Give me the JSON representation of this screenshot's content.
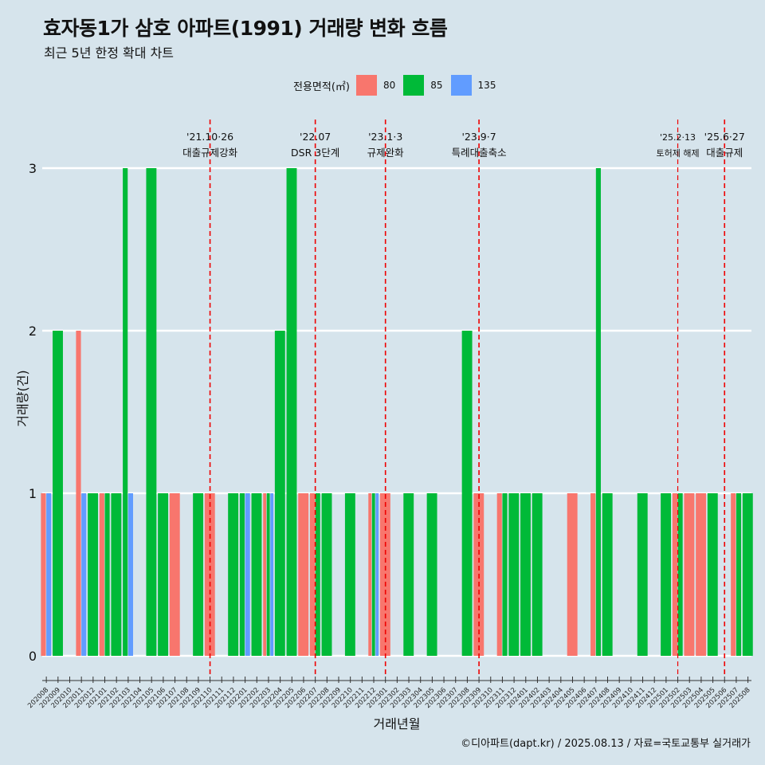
{
  "chart_data": {
    "type": "bar",
    "title": "효자동1가 삼호 아파트(1991) 거래량 변화 흐름",
    "subtitle": "최근 5년 한정 확대 차트",
    "xlabel": "거래년월",
    "ylabel": "거래량(건)",
    "ylim": [
      0,
      3
    ],
    "yticks": [
      "0",
      "1",
      "2",
      "3"
    ],
    "legend": {
      "title": "전용면적(㎡)",
      "position": "top"
    },
    "series": [
      {
        "name": "80",
        "color": "#f8766d"
      },
      {
        "name": "85",
        "color": "#00ba38"
      },
      {
        "name": "135",
        "color": "#619cff"
      }
    ],
    "categories": [
      "202008",
      "202009",
      "202010",
      "202011",
      "202012",
      "202101",
      "202102",
      "202103",
      "202104",
      "202105",
      "202106",
      "202107",
      "202108",
      "202109",
      "202110",
      "202111",
      "202112",
      "202201",
      "202202",
      "202203",
      "202204",
      "202205",
      "202206",
      "202207",
      "202208",
      "202209",
      "202210",
      "202211",
      "202212",
      "202301",
      "202302",
      "202303",
      "202304",
      "202305",
      "202306",
      "202307",
      "202308",
      "202309",
      "202310",
      "202311",
      "202312",
      "202401",
      "202402",
      "202403",
      "202404",
      "202405",
      "202406",
      "202407",
      "202408",
      "202409",
      "202410",
      "202411",
      "202412",
      "202501",
      "202502",
      "202503",
      "202504",
      "202505",
      "202506",
      "202507",
      "202508"
    ],
    "bars": [
      {
        "month": "202008",
        "area": "80",
        "value": 1
      },
      {
        "month": "202008",
        "area": "135",
        "value": 1
      },
      {
        "month": "202009",
        "area": "85",
        "value": 2
      },
      {
        "month": "202011",
        "area": "80",
        "value": 2
      },
      {
        "month": "202011",
        "area": "135",
        "value": 1
      },
      {
        "month": "202012",
        "area": "85",
        "value": 1
      },
      {
        "month": "202101",
        "area": "80",
        "value": 1
      },
      {
        "month": "202101",
        "area": "85",
        "value": 1
      },
      {
        "month": "202102",
        "area": "85",
        "value": 1
      },
      {
        "month": "202103",
        "area": "85",
        "value": 3
      },
      {
        "month": "202103",
        "area": "135",
        "value": 1
      },
      {
        "month": "202105",
        "area": "85",
        "value": 3
      },
      {
        "month": "202106",
        "area": "85",
        "value": 1
      },
      {
        "month": "202107",
        "area": "80",
        "value": 1
      },
      {
        "month": "202109",
        "area": "85",
        "value": 1
      },
      {
        "month": "202110",
        "area": "80",
        "value": 1
      },
      {
        "month": "202112",
        "area": "85",
        "value": 1
      },
      {
        "month": "202201",
        "area": "85",
        "value": 1
      },
      {
        "month": "202201",
        "area": "135",
        "value": 1
      },
      {
        "month": "202202",
        "area": "85",
        "value": 1
      },
      {
        "month": "202203",
        "area": "80",
        "value": 1
      },
      {
        "month": "202203",
        "area": "85",
        "value": 1
      },
      {
        "month": "202203",
        "area": "135",
        "value": 1
      },
      {
        "month": "202204",
        "area": "85",
        "value": 2
      },
      {
        "month": "202205",
        "area": "85",
        "value": 3
      },
      {
        "month": "202206",
        "area": "80",
        "value": 1
      },
      {
        "month": "202207",
        "area": "80",
        "value": 1
      },
      {
        "month": "202207",
        "area": "85",
        "value": 1
      },
      {
        "month": "202208",
        "area": "85",
        "value": 1
      },
      {
        "month": "202210",
        "area": "85",
        "value": 1
      },
      {
        "month": "202212",
        "area": "80",
        "value": 1
      },
      {
        "month": "202212",
        "area": "85",
        "value": 1
      },
      {
        "month": "202212",
        "area": "135",
        "value": 1
      },
      {
        "month": "202301",
        "area": "80",
        "value": 1
      },
      {
        "month": "202303",
        "area": "85",
        "value": 1
      },
      {
        "month": "202305",
        "area": "85",
        "value": 1
      },
      {
        "month": "202308",
        "area": "85",
        "value": 2
      },
      {
        "month": "202309",
        "area": "80",
        "value": 1
      },
      {
        "month": "202311",
        "area": "80",
        "value": 1
      },
      {
        "month": "202311",
        "area": "85",
        "value": 1
      },
      {
        "month": "202312",
        "area": "85",
        "value": 1
      },
      {
        "month": "202401",
        "area": "85",
        "value": 1
      },
      {
        "month": "202402",
        "area": "85",
        "value": 1
      },
      {
        "month": "202405",
        "area": "80",
        "value": 1
      },
      {
        "month": "202407",
        "area": "80",
        "value": 1
      },
      {
        "month": "202407",
        "area": "85",
        "value": 3
      },
      {
        "month": "202408",
        "area": "85",
        "value": 1
      },
      {
        "month": "202411",
        "area": "85",
        "value": 1
      },
      {
        "month": "202501",
        "area": "85",
        "value": 1
      },
      {
        "month": "202502",
        "area": "80",
        "value": 1
      },
      {
        "month": "202502",
        "area": "85",
        "value": 1
      },
      {
        "month": "202503",
        "area": "80",
        "value": 1
      },
      {
        "month": "202504",
        "area": "80",
        "value": 1
      },
      {
        "month": "202505",
        "area": "85",
        "value": 1
      },
      {
        "month": "202507",
        "area": "80",
        "value": 1
      },
      {
        "month": "202507",
        "area": "85",
        "value": 1
      },
      {
        "month": "202508",
        "area": "85",
        "value": 1
      }
    ],
    "annotations": [
      {
        "label_date": "'21.10·26",
        "label_text": "대출규제강화",
        "x": "202110",
        "size": "normal"
      },
      {
        "label_date": "'22.07",
        "label_text": "DSR 3단계",
        "x": "202207",
        "size": "normal"
      },
      {
        "label_date": "'23.1·3",
        "label_text": "규제완화",
        "x": "202301",
        "size": "normal"
      },
      {
        "label_date": "'23.9·7",
        "label_text": "특례대출축소",
        "x": "202309",
        "size": "normal"
      },
      {
        "label_date": "'25.2·13",
        "label_text": "토허제 해제",
        "x": "202502",
        "size": "small"
      },
      {
        "label_date": "'25.6·27",
        "label_text": "대출규제",
        "x": "202506",
        "size": "normal"
      }
    ],
    "grid": true
  },
  "caption": "©디아파트(dapt.kr) / 2025.08.13 / 자료=국토교통부 실거래가"
}
